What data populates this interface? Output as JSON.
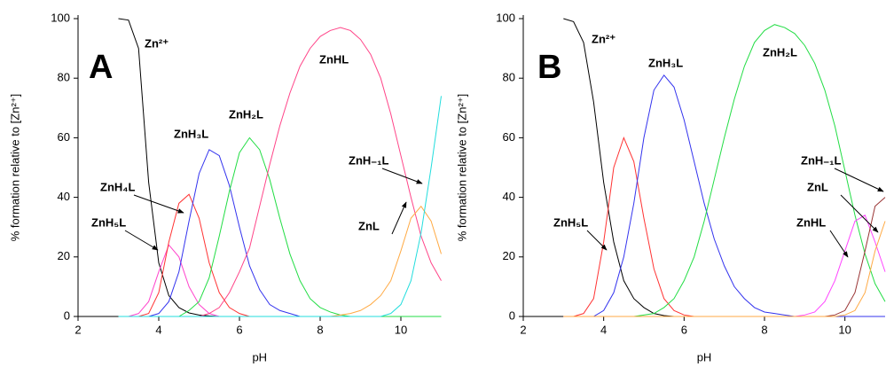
{
  "chart_data": [
    {
      "type": "line",
      "panel_label": "A",
      "x_label": "pH",
      "y_label": "% formation relative to [Zn²⁺]",
      "xlim": [
        2,
        11
      ],
      "ylim": [
        0,
        100
      ],
      "xticks": [
        2,
        4,
        6,
        8,
        10
      ],
      "yticks": [
        0,
        20,
        40,
        60,
        80,
        100
      ],
      "x": [
        3,
        3.25,
        3.5,
        3.75,
        4,
        4.25,
        4.5,
        4.75,
        5,
        5.25,
        5.5,
        5.75,
        6,
        6.25,
        6.5,
        6.75,
        7,
        7.25,
        7.5,
        7.75,
        8,
        8.25,
        8.5,
        8.75,
        9,
        9.25,
        9.5,
        9.75,
        10,
        10.25,
        10.5,
        10.75,
        11
      ],
      "series": [
        {
          "name": "Zn²⁺",
          "color": "#000000",
          "values": [
            100,
            99.5,
            90,
            45,
            18,
            7,
            3,
            1.2,
            0.5,
            0.2,
            0,
            0,
            0,
            0,
            0,
            0,
            0,
            0,
            0,
            0,
            0,
            0,
            0,
            0,
            0,
            0,
            0,
            0,
            0,
            0,
            0,
            0,
            0
          ]
        },
        {
          "name": "ZnH₅L",
          "color": "#ff44cc",
          "values": [
            0,
            0,
            1,
            5,
            15,
            24,
            20,
            10,
            4,
            1,
            0,
            0,
            0,
            0,
            0,
            0,
            0,
            0,
            0,
            0,
            0,
            0,
            0,
            0,
            0,
            0,
            0,
            0,
            0,
            0,
            0,
            0,
            0
          ]
        },
        {
          "name": "ZnH₄L",
          "color": "#ff3333",
          "values": [
            0,
            0,
            0,
            1,
            8,
            25,
            38,
            41,
            33,
            18,
            8,
            3,
            1,
            0,
            0,
            0,
            0,
            0,
            0,
            0,
            0,
            0,
            0,
            0,
            0,
            0,
            0,
            0,
            0,
            0,
            0,
            0,
            0
          ]
        },
        {
          "name": "ZnH₃L",
          "color": "#3333ee",
          "values": [
            0,
            0,
            0,
            0,
            1,
            5,
            15,
            32,
            48,
            56,
            54,
            44,
            30,
            17,
            9,
            4,
            2,
            1,
            0,
            0,
            0,
            0,
            0,
            0,
            0,
            0,
            0,
            0,
            0,
            0,
            0,
            0,
            0
          ]
        },
        {
          "name": "ZnH₂L",
          "color": "#22dd44",
          "values": [
            0,
            0,
            0,
            0,
            0,
            0,
            0,
            2,
            5,
            13,
            27,
            42,
            55,
            60,
            56,
            46,
            33,
            21,
            12,
            6,
            3,
            1.5,
            0.5,
            0,
            0,
            0,
            0,
            0,
            0,
            0,
            0,
            0,
            0
          ]
        },
        {
          "name": "ZnHL",
          "color": "#ff4488",
          "values": [
            0,
            0,
            0,
            0,
            0,
            0,
            0,
            0,
            0,
            1,
            3,
            8,
            15,
            23,
            37,
            51,
            64,
            75,
            84,
            90,
            94,
            96,
            97,
            96,
            93,
            88,
            80,
            68,
            54,
            40,
            27,
            18,
            12
          ]
        },
        {
          "name": "ZnL",
          "color": "#ffaa44",
          "values": [
            0,
            0,
            0,
            0,
            0,
            0,
            0,
            0,
            0,
            0,
            0,
            0,
            0,
            0,
            0,
            0,
            0,
            0,
            0,
            0,
            0,
            0,
            0.5,
            1,
            2,
            4,
            7,
            12,
            22,
            33,
            37,
            32,
            21
          ]
        },
        {
          "name": "ZnH₋₁L",
          "color": "#22dddd",
          "values": [
            0,
            0,
            0,
            0,
            0,
            0,
            0,
            0,
            0,
            0,
            0,
            0,
            0,
            0,
            0,
            0,
            0,
            0,
            0,
            0,
            0,
            0,
            0,
            0,
            0,
            0,
            0,
            1,
            4,
            12,
            28,
            50,
            74
          ]
        }
      ]
    },
    {
      "type": "line",
      "panel_label": "B",
      "x_label": "pH",
      "y_label": "% formation relative to [Zn²⁺]",
      "xlim": [
        2,
        11
      ],
      "ylim": [
        0,
        100
      ],
      "xticks": [
        2,
        4,
        6,
        8,
        10
      ],
      "yticks": [
        0,
        20,
        40,
        60,
        80,
        100
      ],
      "x": [
        3,
        3.25,
        3.5,
        3.75,
        4,
        4.25,
        4.5,
        4.75,
        5,
        5.25,
        5.5,
        5.75,
        6,
        6.25,
        6.5,
        6.75,
        7,
        7.25,
        7.5,
        7.75,
        8,
        8.25,
        8.5,
        8.75,
        9,
        9.25,
        9.5,
        9.75,
        10,
        10.25,
        10.5,
        10.75,
        11
      ],
      "series": [
        {
          "name": "Zn²⁺",
          "color": "#000000",
          "values": [
            100,
            99,
            92,
            72,
            45,
            25,
            12,
            6,
            3,
            1,
            0.3,
            0,
            0,
            0,
            0,
            0,
            0,
            0,
            0,
            0,
            0,
            0,
            0,
            0,
            0,
            0,
            0,
            0,
            0,
            0,
            0,
            0,
            0
          ]
        },
        {
          "name": "ZnH₅L",
          "color": "#ff3333",
          "values": [
            0,
            0,
            1,
            6,
            25,
            50,
            60,
            52,
            33,
            16,
            6,
            2,
            0.5,
            0,
            0,
            0,
            0,
            0,
            0,
            0,
            0,
            0,
            0,
            0,
            0,
            0,
            0,
            0,
            0,
            0,
            0,
            0,
            0
          ]
        },
        {
          "name": "ZnH₃L",
          "color": "#3333ee",
          "values": [
            0,
            0,
            0,
            0,
            2,
            8,
            20,
            38,
            60,
            76,
            81,
            77,
            66,
            52,
            38,
            26,
            17,
            10,
            6,
            3,
            1.5,
            1,
            0.5,
            0,
            0,
            0,
            0,
            0,
            0,
            0,
            0,
            0,
            0
          ]
        },
        {
          "name": "ZnH₂L",
          "color": "#22dd44",
          "values": [
            0,
            0,
            0,
            0,
            0,
            0,
            0,
            0,
            0.5,
            1,
            3,
            6,
            12,
            20,
            32,
            46,
            60,
            73,
            84,
            92,
            96,
            98,
            97,
            95,
            91,
            85,
            76,
            64,
            49,
            34,
            21,
            11,
            5
          ]
        },
        {
          "name": "ZnHL",
          "color": "#ff44ff",
          "values": [
            0,
            0,
            0,
            0,
            0,
            0,
            0,
            0,
            0,
            0,
            0,
            0,
            0,
            0,
            0,
            0,
            0,
            0,
            0,
            0,
            0,
            0,
            0,
            0,
            0.5,
            1.5,
            5,
            12,
            22,
            32,
            34,
            25,
            15
          ]
        },
        {
          "name": "ZnL",
          "color": "#993333",
          "values": [
            0,
            0,
            0,
            0,
            0,
            0,
            0,
            0,
            0,
            0,
            0,
            0,
            0,
            0,
            0,
            0,
            0,
            0,
            0,
            0,
            0,
            0,
            0,
            0,
            0,
            0,
            0,
            0.5,
            2,
            8,
            22,
            37,
            40
          ]
        },
        {
          "name": "ZnH₋₁L",
          "color": "#ffaa44",
          "values": [
            0,
            0,
            0,
            0,
            0,
            0,
            0,
            0,
            0,
            0,
            0,
            0,
            0,
            0,
            0,
            0,
            0,
            0,
            0,
            0,
            0,
            0,
            0,
            0,
            0,
            0,
            0,
            0,
            0.5,
            2,
            8,
            22,
            32
          ]
        }
      ]
    }
  ]
}
